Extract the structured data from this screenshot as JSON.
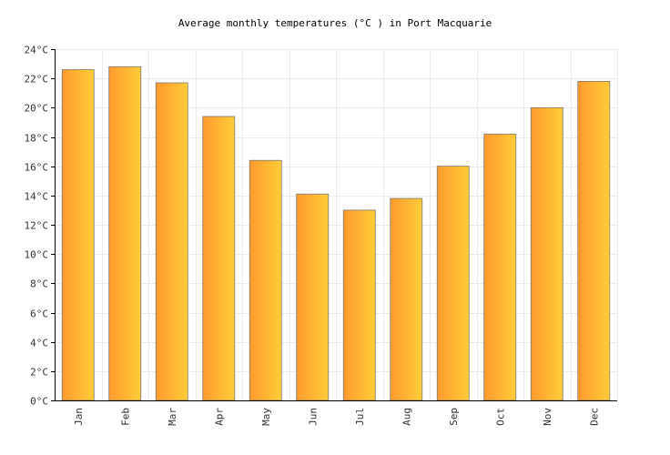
{
  "chart_data": {
    "type": "bar",
    "title": "Average monthly temperatures (°C ) in Port Macquarie",
    "xlabel": "",
    "ylabel": "",
    "categories": [
      "Jan",
      "Feb",
      "Mar",
      "Apr",
      "May",
      "Jun",
      "Jul",
      "Aug",
      "Sep",
      "Oct",
      "Nov",
      "Dec"
    ],
    "values": [
      22.6,
      22.8,
      21.7,
      19.4,
      16.4,
      14.1,
      13.0,
      13.8,
      16.0,
      18.2,
      20.0,
      21.8
    ],
    "ylim": [
      0,
      24
    ],
    "yticks": [
      0,
      2,
      4,
      6,
      8,
      10,
      12,
      14,
      16,
      18,
      20,
      22,
      24
    ],
    "ytick_suffix": "°C",
    "grid": true,
    "bar_gradient": [
      "#ff9a2e",
      "#ffcd38"
    ]
  }
}
